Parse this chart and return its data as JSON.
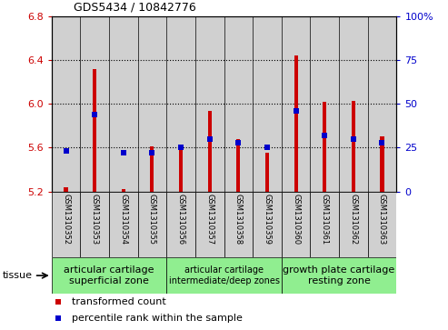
{
  "title": "GDS5434 / 10842776",
  "samples": [
    "GSM1310352",
    "GSM1310353",
    "GSM1310354",
    "GSM1310355",
    "GSM1310356",
    "GSM1310357",
    "GSM1310358",
    "GSM1310359",
    "GSM1310360",
    "GSM1310361",
    "GSM1310362",
    "GSM1310363"
  ],
  "red_values": [
    5.24,
    6.32,
    5.22,
    5.61,
    5.61,
    5.94,
    5.68,
    5.55,
    6.44,
    6.02,
    6.03,
    5.7
  ],
  "blue_values_pct": [
    23,
    44,
    22,
    22,
    25,
    30,
    28,
    25,
    46,
    32,
    30,
    28
  ],
  "y_min": 5.2,
  "y_max": 6.8,
  "y_ticks": [
    5.2,
    5.6,
    6.0,
    6.4,
    6.8
  ],
  "y_right_ticks": [
    0,
    25,
    50,
    75,
    100
  ],
  "dotted_lines": [
    5.6,
    6.0,
    6.4
  ],
  "red_color": "#cc0000",
  "blue_color": "#0000cc",
  "bar_base": 5.2,
  "sample_bg_color": "#d0d0d0",
  "tissue_bg_color": "#90ee90",
  "plot_bg_color": "#ffffff"
}
